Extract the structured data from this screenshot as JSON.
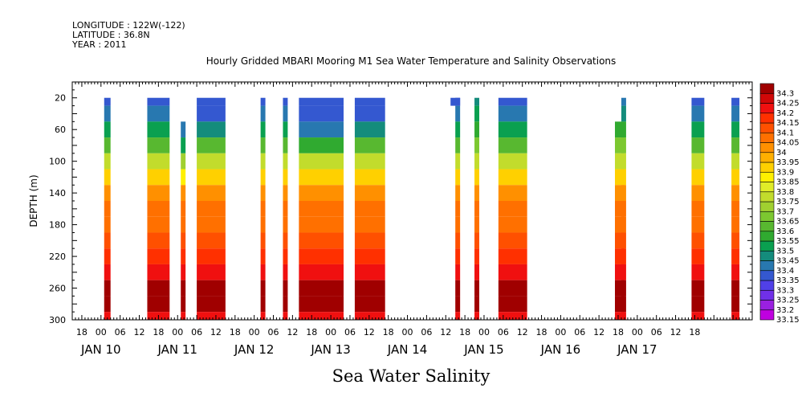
{
  "header": {
    "longitude": "LONGITUDE : 122W(-122)",
    "latitude": "LATITUDE : 36.8N",
    "year": "YEAR : 2011"
  },
  "chart_data": {
    "type": "heatmap",
    "title": "Hourly Gridded MBARI Mooring M1 Sea Water Temperature and Salinity Observations",
    "xlabel": "Sea Water Salinity",
    "ylabel": "DEPTH (m)",
    "x_hour_labels": [
      "18",
      "00",
      "06",
      "12",
      "18",
      "00",
      "06",
      "12",
      "18",
      "00",
      "06",
      "12",
      "18",
      "00",
      "06",
      "12",
      "18",
      "00",
      "06",
      "12",
      "18",
      "00",
      "06",
      "12",
      "18",
      "00",
      "06",
      "12",
      "18",
      "00",
      "06",
      "12",
      "18"
    ],
    "x_day_labels": [
      "JAN 10",
      "JAN 11",
      "JAN 12",
      "JAN 13",
      "JAN 14",
      "JAN 15",
      "JAN 16",
      "JAN 17"
    ],
    "xlim_hours_from_jan10_00": [
      -9,
      204
    ],
    "ylim_depth_m": [
      300,
      0
    ],
    "y_ticks": [
      20,
      60,
      100,
      140,
      180,
      220,
      260,
      300
    ],
    "depth_levels_m": [
      20,
      40,
      60,
      80,
      100,
      120,
      140,
      160,
      180,
      200,
      220,
      240,
      260,
      280,
      300
    ],
    "colorbar": {
      "labels": [
        "33.15",
        "33.2",
        "33.25",
        "33.3",
        "33.35",
        "33.4",
        "33.45",
        "33.5",
        "33.55",
        "33.6",
        "33.65",
        "33.7",
        "33.75",
        "33.8",
        "33.85",
        "33.9",
        "33.95",
        "34",
        "34.05",
        "34.1",
        "34.15",
        "34.2",
        "34.25",
        "34.3"
      ],
      "colors": [
        "#c000e0",
        "#9a20e0",
        "#7030e8",
        "#5040e8",
        "#3458d0",
        "#2878b0",
        "#148c7c",
        "#0aa050",
        "#30aa30",
        "#58b830",
        "#7cc830",
        "#a0d030",
        "#c2dc2c",
        "#e0ec28",
        "#fff000",
        "#ffd000",
        "#ffb000",
        "#ff9000",
        "#ff7000",
        "#ff5000",
        "#ff3000",
        "#f01010",
        "#d00808",
        "#a00000"
      ]
    },
    "segments": [
      {
        "start": 1,
        "end": 3,
        "profile": [
          33.35,
          33.4,
          33.5,
          33.6,
          33.75,
          33.9,
          34.0,
          34.05,
          34.08,
          34.1,
          34.15,
          34.2,
          34.3,
          34.3,
          34.2
        ]
      },
      {
        "start": 14.5,
        "end": 21.5,
        "profile": [
          33.35,
          33.4,
          33.5,
          33.6,
          33.75,
          33.9,
          34.0,
          34.05,
          34.08,
          34.1,
          34.15,
          34.2,
          34.3,
          34.3,
          34.2
        ]
      },
      {
        "start": 25,
        "end": 26.5,
        "profile": [
          null,
          null,
          33.4,
          33.5,
          33.7,
          33.88,
          34.0,
          34.05,
          34.08,
          34.1,
          34.15,
          34.2,
          34.3,
          34.3,
          34.2
        ]
      },
      {
        "start": 30,
        "end": 39,
        "profile": [
          33.35,
          33.35,
          33.45,
          33.6,
          33.75,
          33.9,
          34.0,
          34.05,
          34.08,
          34.1,
          34.15,
          34.2,
          34.3,
          34.3,
          34.2
        ]
      },
      {
        "start": 50,
        "end": 51.5,
        "profile": [
          33.35,
          33.4,
          33.5,
          33.6,
          33.75,
          33.9,
          34.0,
          34.05,
          34.08,
          34.1,
          34.15,
          34.2,
          34.3,
          34.3,
          34.2
        ]
      },
      {
        "start": 57,
        "end": 58.5,
        "profile": [
          33.35,
          33.4,
          33.5,
          33.6,
          33.75,
          33.9,
          34.0,
          34.05,
          34.08,
          34.1,
          34.15,
          34.2,
          34.3,
          34.3,
          34.2
        ]
      },
      {
        "start": 62,
        "end": 76,
        "profile": [
          33.35,
          33.35,
          33.4,
          33.55,
          33.75,
          33.9,
          34.0,
          34.05,
          34.08,
          34.1,
          34.15,
          34.2,
          34.3,
          34.3,
          34.2
        ]
      },
      {
        "start": 79.5,
        "end": 89,
        "profile": [
          33.35,
          33.35,
          33.45,
          33.6,
          33.75,
          33.9,
          34.0,
          34.05,
          34.08,
          34.1,
          34.15,
          34.2,
          34.3,
          34.3,
          34.2
        ]
      },
      {
        "start": 109.5,
        "end": 112.5,
        "profile": [
          33.35,
          null,
          null,
          null,
          null,
          null,
          null,
          null,
          null,
          null,
          null,
          null,
          null,
          null,
          null
        ]
      },
      {
        "start": 111,
        "end": 112.5,
        "profile": [
          33.35,
          33.4,
          33.5,
          33.6,
          33.75,
          33.9,
          34.0,
          34.05,
          34.08,
          34.1,
          34.15,
          34.2,
          34.3,
          34.3,
          34.2
        ]
      },
      {
        "start": 117,
        "end": 118.5,
        "profile": [
          33.45,
          33.5,
          33.55,
          33.65,
          33.75,
          33.9,
          34.0,
          34.05,
          34.08,
          34.1,
          34.15,
          34.2,
          34.3,
          34.3,
          34.2
        ]
      },
      {
        "start": 124.5,
        "end": 133.5,
        "profile": [
          33.35,
          33.4,
          33.5,
          33.6,
          33.75,
          33.9,
          34.0,
          34.05,
          34.08,
          34.1,
          34.15,
          34.2,
          34.3,
          34.3,
          34.2
        ]
      },
      {
        "start": 161,
        "end": 164,
        "profile": [
          null,
          null,
          33.55,
          33.65,
          33.75,
          33.9,
          34.0,
          34.05,
          34.08,
          34.1,
          34.15,
          34.2,
          34.3,
          34.3,
          34.2
        ]
      },
      {
        "start": 163,
        "end": 164.5,
        "profile": [
          33.4,
          33.45,
          33.55,
          33.65,
          33.75,
          33.9,
          34.0,
          34.05,
          34.08,
          34.1,
          34.15,
          34.2,
          34.3,
          34.3,
          34.2
        ]
      },
      {
        "start": 185,
        "end": 189,
        "profile": [
          33.35,
          33.4,
          33.5,
          33.6,
          33.75,
          33.9,
          34.0,
          34.05,
          34.08,
          34.1,
          34.15,
          34.2,
          34.3,
          34.3,
          34.2
        ]
      },
      {
        "start": 197.5,
        "end": 200,
        "profile": [
          33.35,
          33.4,
          33.5,
          33.6,
          33.75,
          33.9,
          34.0,
          34.05,
          34.08,
          34.1,
          34.15,
          34.2,
          34.3,
          34.3,
          34.2
        ]
      }
    ]
  }
}
